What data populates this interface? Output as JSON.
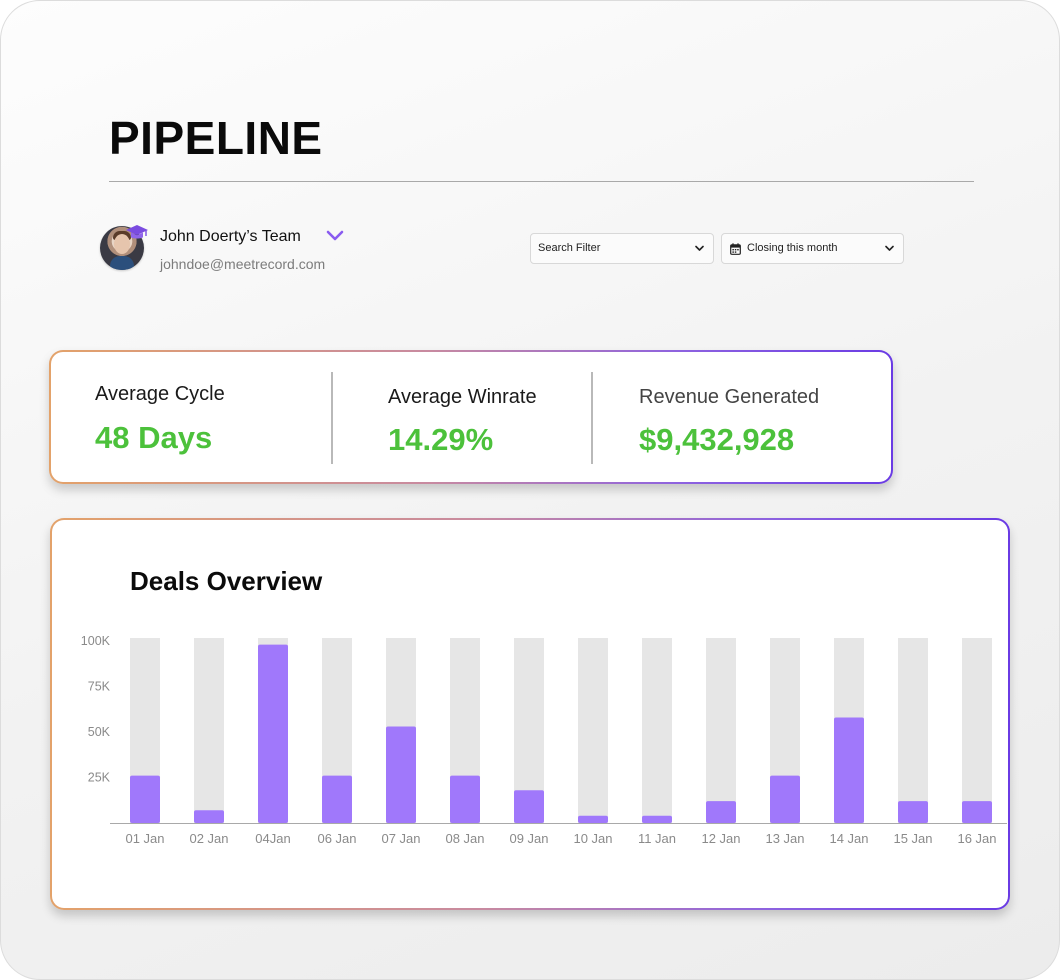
{
  "page": {
    "title": "PIPELINE"
  },
  "team": {
    "name": "John Doerty’s Team",
    "email": "johndoe@meetrecord.com",
    "avatar_icon": "user-avatar",
    "badge_icon": "graduation-cap-icon",
    "badge_color": "#7b4ce0",
    "dropdown_icon": "chevron-down-icon"
  },
  "filters": {
    "search": {
      "label": "Search Filter",
      "icon": "chevron-down-icon"
    },
    "closing": {
      "label": "Closing this month",
      "leading_icon": "calendar-icon",
      "icon": "chevron-down-icon"
    }
  },
  "stats": [
    {
      "label": "Average Cycle",
      "value": "48 Days"
    },
    {
      "label": "Average Winrate",
      "value": "14.29%"
    },
    {
      "label": "Revenue Generated",
      "value": "$9,432,928"
    }
  ],
  "colors": {
    "accent_green": "#4cc13b",
    "bar_purple": "#a078fb",
    "bar_track": "#e6e6e6",
    "border_gradient_start": "#e3a26a",
    "border_gradient_end": "#6a3be4"
  },
  "chart_data": {
    "type": "bar",
    "title": "Deals Overview",
    "categories": [
      "01 Jan",
      "02 Jan",
      "04Jan",
      "06 Jan",
      "07 Jan",
      "08 Jan",
      "09 Jan",
      "10 Jan",
      "11 Jan",
      "12 Jan",
      "13 Jan",
      "14 Jan",
      "15 Jan",
      "16 Jan"
    ],
    "values": [
      26000,
      7000,
      98000,
      26000,
      53000,
      26000,
      18000,
      4000,
      4000,
      12000,
      26000,
      58000,
      12000,
      12000
    ],
    "yticks": [
      {
        "value": 25000,
        "label": "25K"
      },
      {
        "value": 50000,
        "label": "50K"
      },
      {
        "value": 75000,
        "label": "75K"
      },
      {
        "value": 100000,
        "label": "100K"
      }
    ],
    "ylim": [
      0,
      100000
    ],
    "background_bars": true,
    "grid": false,
    "legend": "none"
  }
}
